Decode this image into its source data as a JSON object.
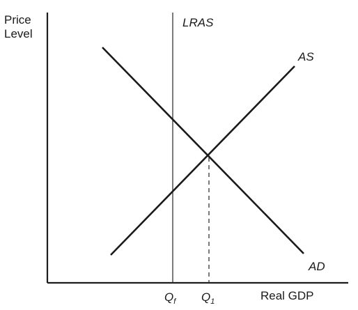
{
  "diagram": {
    "y_axis_label_line1": "Price",
    "y_axis_label_line2": "Level",
    "x_axis_label": "Real GDP",
    "curves": {
      "lras": "LRAS",
      "as": "AS",
      "ad": "AD"
    },
    "ticks": {
      "qf_main": "Q",
      "qf_sub": "f",
      "q1_main": "Q",
      "q1_sub": "1"
    }
  }
}
